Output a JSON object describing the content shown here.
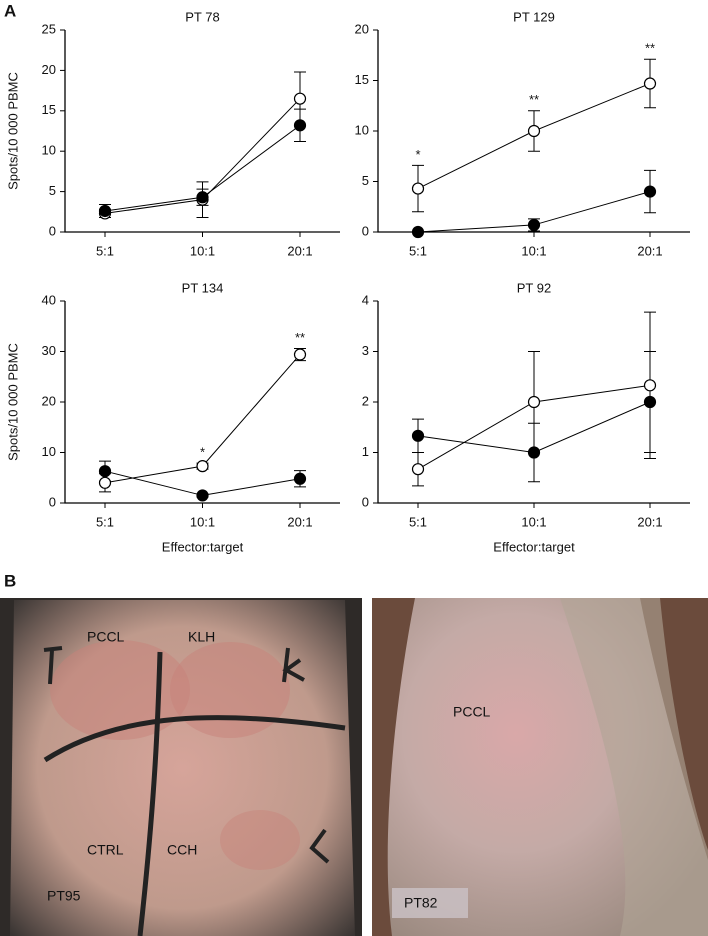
{
  "chart_data": [
    {
      "type": "line",
      "title": "PT 78",
      "ylabel": "Spots/10 000 PBMC",
      "categories": [
        "5:1",
        "10:1",
        "20:1"
      ],
      "ylim": [
        0,
        25
      ],
      "yticks": [
        0,
        5,
        10,
        15,
        20,
        25
      ],
      "series": [
        {
          "color": "#000000",
          "fill": "#ffffff",
          "values": [
            2.3,
            4.0,
            16.5
          ],
          "errors": [
            0.5,
            2.2,
            3.3
          ]
        },
        {
          "color": "#000000",
          "fill": "#000000",
          "values": [
            2.6,
            4.3,
            13.2
          ],
          "errors": [
            0.8,
            1.0,
            2.0
          ]
        }
      ]
    },
    {
      "type": "line",
      "title": "PT 129",
      "categories": [
        "5:1",
        "10:1",
        "20:1"
      ],
      "ylim": [
        0,
        20
      ],
      "yticks": [
        0,
        5,
        10,
        15,
        20
      ],
      "annotations": [
        "*",
        "**",
        "**"
      ],
      "series": [
        {
          "color": "#000000",
          "fill": "#ffffff",
          "values": [
            4.3,
            10.0,
            14.7
          ],
          "errors": [
            2.3,
            2.0,
            2.4
          ]
        },
        {
          "color": "#000000",
          "fill": "#000000",
          "values": [
            0,
            0.7,
            4.0
          ],
          "errors": [
            0,
            0.6,
            2.1
          ]
        }
      ]
    },
    {
      "type": "line",
      "title": "PT 134",
      "ylabel": "Spots/10 000 PBMC",
      "xlabel": "Effector:target",
      "categories": [
        "5:1",
        "10:1",
        "20:1"
      ],
      "ylim": [
        0,
        40
      ],
      "yticks": [
        0,
        10,
        20,
        30,
        40
      ],
      "annotations": [
        null,
        "*",
        "**"
      ],
      "series": [
        {
          "color": "#000000",
          "fill": "#ffffff",
          "values": [
            4.0,
            7.3,
            29.4
          ],
          "errors": [
            1.8,
            0.6,
            1.2
          ]
        },
        {
          "color": "#000000",
          "fill": "#000000",
          "values": [
            6.3,
            1.5,
            4.8
          ],
          "errors": [
            2.0,
            0.3,
            1.6
          ]
        }
      ]
    },
    {
      "type": "line",
      "title": "PT 92",
      "xlabel": "Effector:target",
      "categories": [
        "5:1",
        "10:1",
        "20:1"
      ],
      "ylim": [
        0,
        4
      ],
      "yticks": [
        0,
        1,
        2,
        3,
        4
      ],
      "series": [
        {
          "color": "#000000",
          "fill": "#ffffff",
          "values": [
            0.67,
            2.0,
            2.33
          ],
          "errors": [
            0.33,
            1.0,
            1.45
          ]
        },
        {
          "color": "#000000",
          "fill": "#000000",
          "values": [
            1.33,
            1.0,
            2.0
          ],
          "errors": [
            0.33,
            0.58,
            1.0
          ]
        }
      ]
    }
  ],
  "figure": {
    "panel_labels": [
      "A",
      "B"
    ],
    "photos": [
      {
        "labels": [
          "PCCL",
          "KLH",
          "CTRL",
          "CCH",
          "PT95"
        ]
      },
      {
        "labels": [
          "PCCL",
          "PT82"
        ]
      }
    ]
  }
}
